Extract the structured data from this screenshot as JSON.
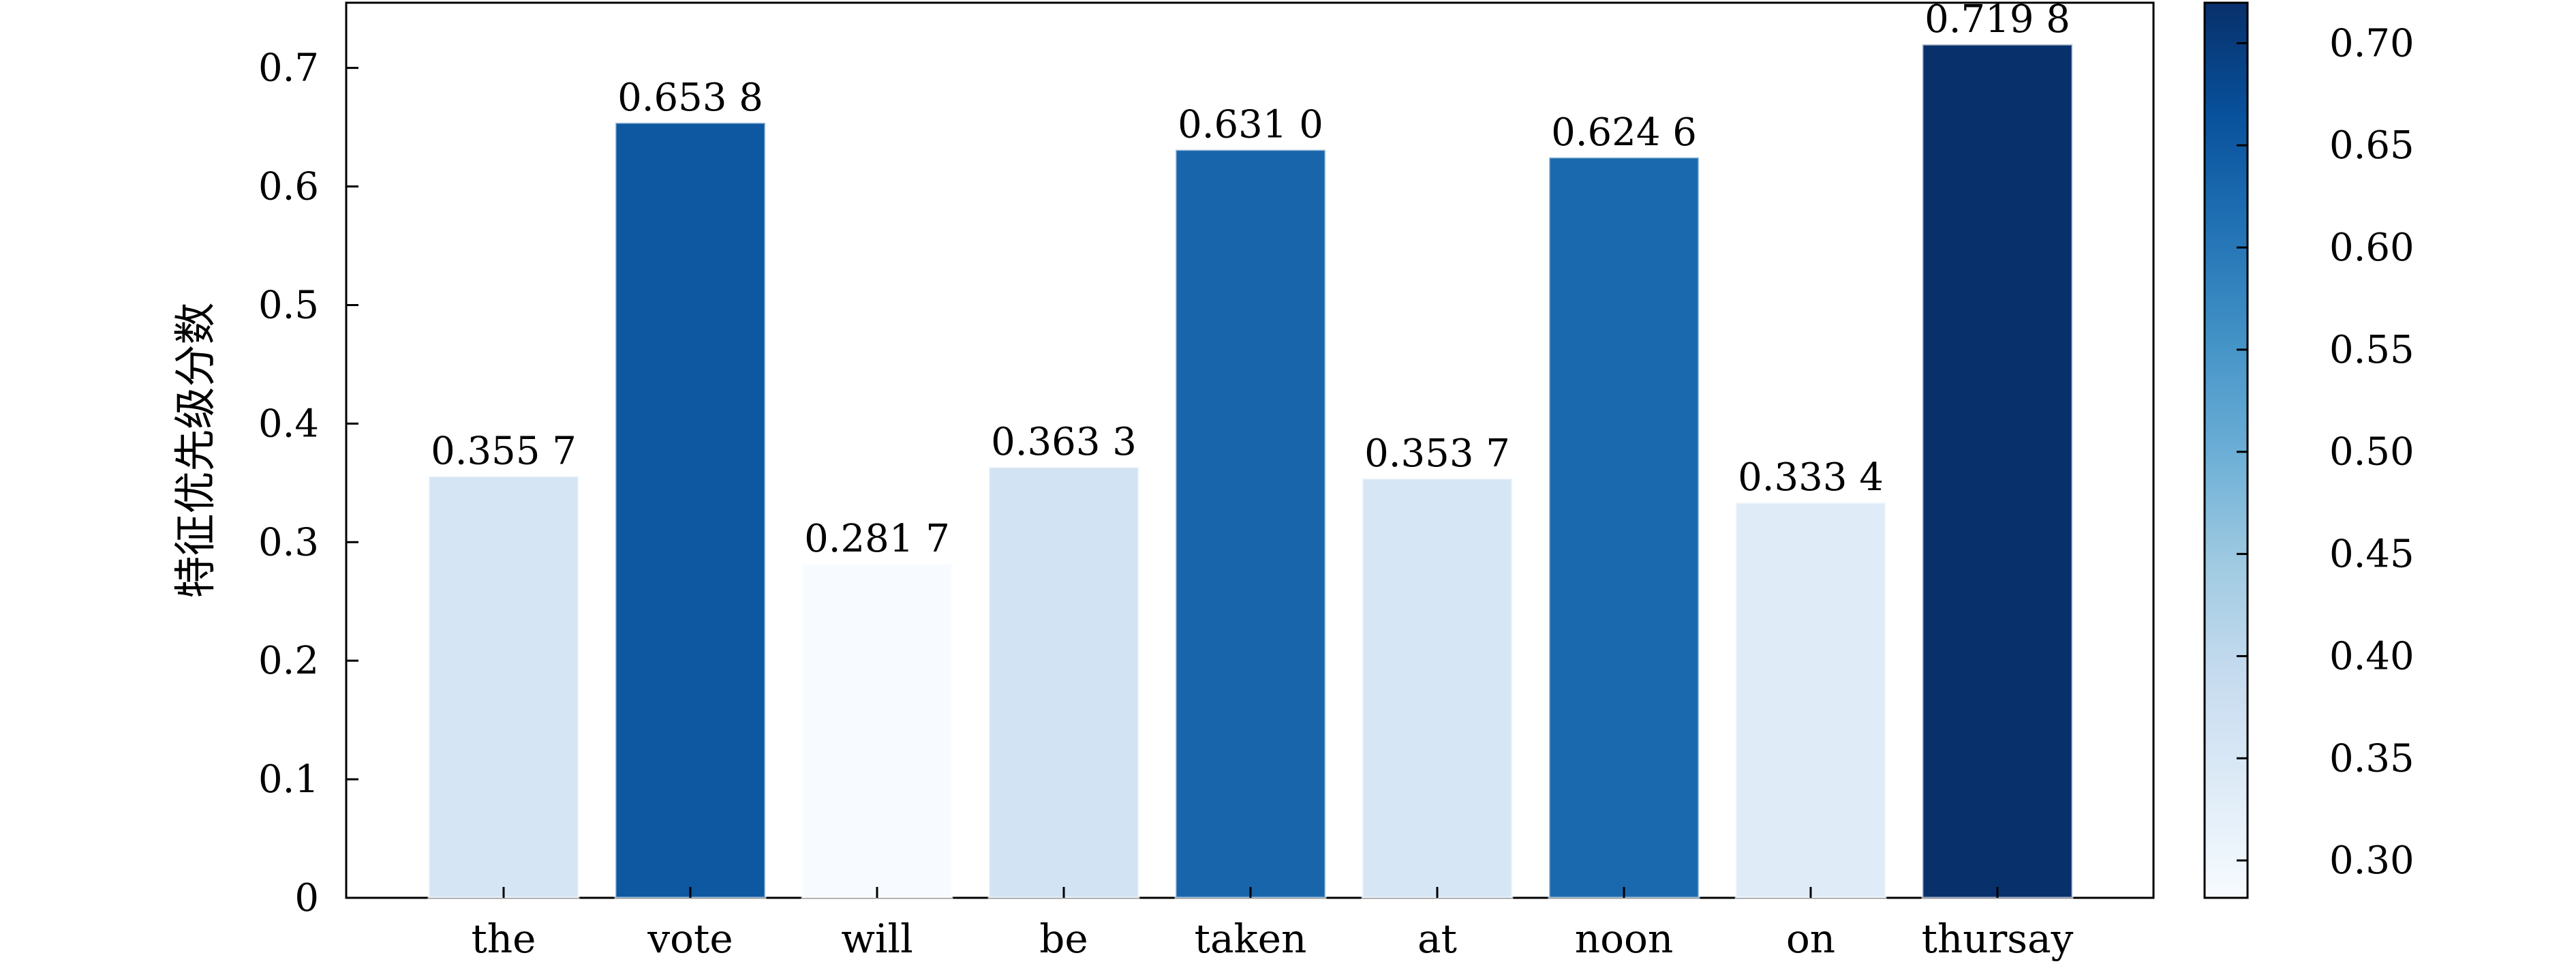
{
  "chart_data": {
    "type": "bar",
    "categories": [
      "the",
      "vote",
      "will",
      "be",
      "taken",
      "at",
      "noon",
      "on",
      "thursay"
    ],
    "values": [
      0.3557,
      0.6538,
      0.2817,
      0.3633,
      0.631,
      0.3537,
      0.6246,
      0.3334,
      0.7198
    ],
    "value_labels": [
      "0.355 7",
      "0.653 8",
      "0.281 7",
      "0.363 3",
      "0.631 0",
      "0.353 7",
      "0.624 6",
      "0.333 4",
      "0.719 8"
    ],
    "title": "",
    "xlabel": "",
    "ylabel": "特征优先级分数",
    "ylim": [
      0,
      0.755
    ],
    "yticks": [
      0,
      0.1,
      0.2,
      0.3,
      0.4,
      0.5,
      0.6,
      0.7
    ],
    "ytick_labels": [
      "0",
      "0.1",
      "0.2",
      "0.3",
      "0.4",
      "0.5",
      "0.6",
      "0.7"
    ],
    "grid": false,
    "colormap": "Blues",
    "colorbar": {
      "range": [
        0.2817,
        0.7198
      ],
      "ticks": [
        0.3,
        0.35,
        0.4,
        0.45,
        0.5,
        0.55,
        0.6,
        0.65,
        0.7
      ],
      "tick_labels": [
        "0.30",
        "0.35",
        "0.40",
        "0.45",
        "0.50",
        "0.55",
        "0.60",
        "0.65",
        "0.70"
      ],
      "colors": [
        "#f7fbff",
        "#deebf7",
        "#c6dbef",
        "#9ecae1",
        "#6baed6",
        "#4292c6",
        "#2171b5",
        "#08519c",
        "#08306b"
      ]
    }
  }
}
